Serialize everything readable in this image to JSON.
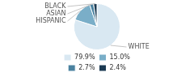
{
  "chart_data": {
    "type": "pie",
    "categories": [
      "WHITE",
      "HISPANIC",
      "ASIAN",
      "BLACK"
    ],
    "values": [
      79.9,
      15.0,
      2.7,
      2.4
    ],
    "value_labels": [
      "79.9%",
      "15.0%",
      "2.7%",
      "2.4%"
    ],
    "colors": [
      "#d9e8f2",
      "#7aaec8",
      "#4a82a0",
      "#1b3a52"
    ],
    "legend": "bottom"
  }
}
